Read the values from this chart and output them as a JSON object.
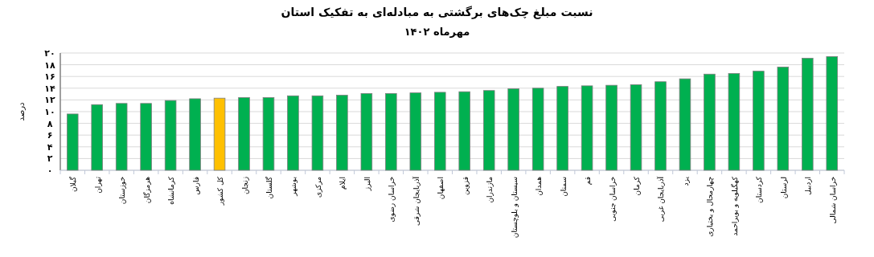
{
  "chart_data": {
    "type": "bar",
    "title": "نسبت مبلغ چک‌های برگشتی به مبادله‌ای به تفکیک استان",
    "subtitle": "مهرماه ۱۴۰۲",
    "ylabel": "درصد",
    "categories": [
      "گیلان",
      "تهران",
      "خوزستان",
      "هرمزگان",
      "کرمانشاه",
      "فارس",
      "کل کشور",
      "زنجان",
      "گلستان",
      "بوشهر",
      "مرکزی",
      "ایلام",
      "البرز",
      "خراسان رضوی",
      "آذربایجان شرقی",
      "اصفهان",
      "قزوین",
      "مازندران",
      "سیستان و بلوچستان",
      "همدان",
      "سمنان",
      "قم",
      "خراسان جنوبی",
      "کرمان",
      "آذربایجان غربی",
      "یزد",
      "چهارمحال و بختیاری",
      "کهگیلویه و بویراحمد",
      "کردستان",
      "لرستان",
      "اردبیل",
      "خراسان شمالی"
    ],
    "values": [
      9.6,
      11.2,
      11.4,
      11.4,
      11.9,
      12.2,
      12.3,
      12.4,
      12.4,
      12.7,
      12.7,
      12.8,
      13.1,
      13.1,
      13.2,
      13.3,
      13.4,
      13.6,
      13.9,
      14.0,
      14.3,
      14.4,
      14.5,
      14.6,
      15.1,
      15.6,
      16.4,
      16.5,
      16.9,
      17.6,
      19.1,
      19.4
    ],
    "colors": [
      "#00b050",
      "#00b050",
      "#00b050",
      "#00b050",
      "#00b050",
      "#00b050",
      "#ffc000",
      "#00b050",
      "#00b050",
      "#00b050",
      "#00b050",
      "#00b050",
      "#00b050",
      "#00b050",
      "#00b050",
      "#00b050",
      "#00b050",
      "#00b050",
      "#00b050",
      "#00b050",
      "#00b050",
      "#00b050",
      "#00b050",
      "#00b050",
      "#00b050",
      "#00b050",
      "#00b050",
      "#00b050",
      "#00b050",
      "#00b050",
      "#00b050",
      "#00b050"
    ],
    "ylim": [
      0,
      20
    ],
    "yticks": [
      {
        "value": 0,
        "label": "۰"
      },
      {
        "value": 2,
        "label": "۲"
      },
      {
        "value": 4,
        "label": "۴"
      },
      {
        "value": 6,
        "label": "۶"
      },
      {
        "value": 8,
        "label": "۸"
      },
      {
        "value": 10,
        "label": "۱۰"
      },
      {
        "value": 12,
        "label": "۱۲"
      },
      {
        "value": 14,
        "label": "۱۴"
      },
      {
        "value": 16,
        "label": "۱۶"
      },
      {
        "value": 18,
        "label": "۱۸"
      },
      {
        "value": 20,
        "label": "۲۰"
      }
    ],
    "grid": "y"
  }
}
